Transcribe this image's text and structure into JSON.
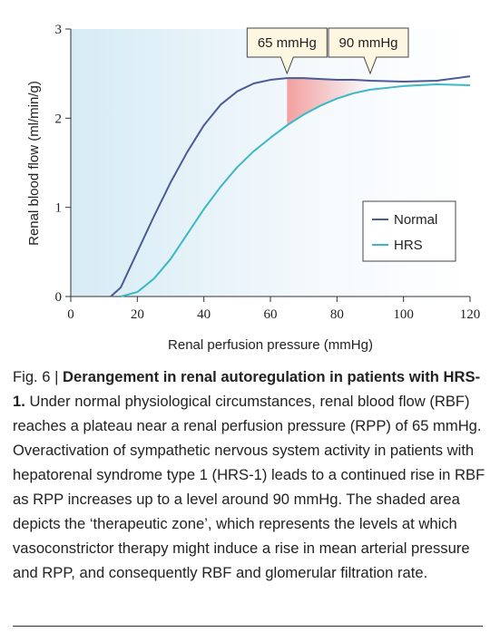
{
  "chart_data": {
    "type": "line",
    "ylabel": "Renal blood flow (ml/min/g)",
    "xlabel": "Renal perfusion pressure (mmHg)",
    "x": [
      12,
      15,
      20,
      25,
      30,
      35,
      40,
      45,
      50,
      55,
      60,
      65,
      70,
      75,
      80,
      85,
      90,
      100,
      110,
      120
    ],
    "series": [
      {
        "name": "Normal",
        "color": "#4a5b96",
        "values": [
          0,
          0.1,
          0.5,
          0.9,
          1.28,
          1.62,
          1.92,
          2.15,
          2.3,
          2.39,
          2.43,
          2.45,
          2.45,
          2.44,
          2.43,
          2.43,
          2.42,
          2.41,
          2.42,
          2.47
        ]
      },
      {
        "name": "HRS",
        "color": "#3bb8c6",
        "values": [
          null,
          0,
          0.05,
          0.2,
          0.42,
          0.7,
          0.98,
          1.23,
          1.45,
          1.63,
          1.78,
          1.92,
          2.04,
          2.14,
          2.22,
          2.28,
          2.32,
          2.36,
          2.38,
          2.37
        ]
      }
    ],
    "annotations": [
      {
        "x": 65,
        "label": "65 mmHg"
      },
      {
        "x": 90,
        "label": "90 mmHg"
      }
    ],
    "shade_color": "#f4a0a0",
    "xlim": [
      0,
      120
    ],
    "xticks": [
      0,
      20,
      40,
      60,
      80,
      100,
      120
    ],
    "ylim": [
      0,
      3
    ],
    "yticks": [
      0,
      1,
      2,
      3
    ],
    "legend": "lower right"
  },
  "caption": {
    "label": "Fig. 6 |",
    "title": "Derangement in renal autoregulation in patients with HRS-1.",
    "text": "Under normal physiological circumstances, renal blood flow (RBF) reaches a plateau near a renal perfusion pressure (RPP) of 65 mmHg. Overactivation of sympathetic nervous system activity in patients with hepatorenal syndrome type 1 (HRS-1) leads to a continued rise in RBF as RPP increases up to a level around 90 mmHg. The shaded area depicts the ‘therapeutic zone’, which represents the levels at which vasoconstrictor therapy might induce a rise in mean arterial pressure and RPP, and consequently RBF and glomerular filtration rate."
  }
}
